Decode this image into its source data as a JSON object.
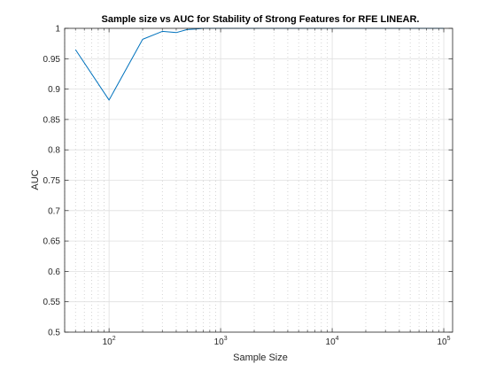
{
  "chart_data": {
    "type": "line",
    "title": "Sample size vs AUC for Stability of Strong Features for RFE LINEAR.",
    "xlabel": "Sample Size",
    "ylabel": "AUC",
    "xscale": "log",
    "xlim": [
      40,
      120000
    ],
    "ylim": [
      0.5,
      1
    ],
    "grid": true,
    "minor_grid": true,
    "y_ticks": [
      "0.5",
      "0.55",
      "0.6",
      "0.65",
      "0.7",
      "0.75",
      "0.8",
      "0.85",
      "0.9",
      "0.95",
      "1"
    ],
    "x_ticks": [
      {
        "value": 100,
        "base": "10",
        "exp": "2"
      },
      {
        "value": 1000,
        "base": "10",
        "exp": "3"
      },
      {
        "value": 10000,
        "base": "10",
        "exp": "4"
      },
      {
        "value": 100000,
        "base": "10",
        "exp": "5"
      }
    ],
    "series": [
      {
        "color": "#0072bd",
        "x": [
          50,
          100,
          200,
          300,
          400,
          500,
          600,
          700,
          800,
          900,
          1000,
          2000,
          5000,
          10000,
          20000,
          50000,
          100000
        ],
        "y": [
          0.965,
          0.882,
          0.982,
          0.995,
          0.993,
          0.998,
          0.999,
          1.0,
          1.0,
          1.0,
          1.0,
          1.0,
          1.0,
          1.0,
          1.0,
          1.0,
          1.0
        ]
      }
    ]
  }
}
